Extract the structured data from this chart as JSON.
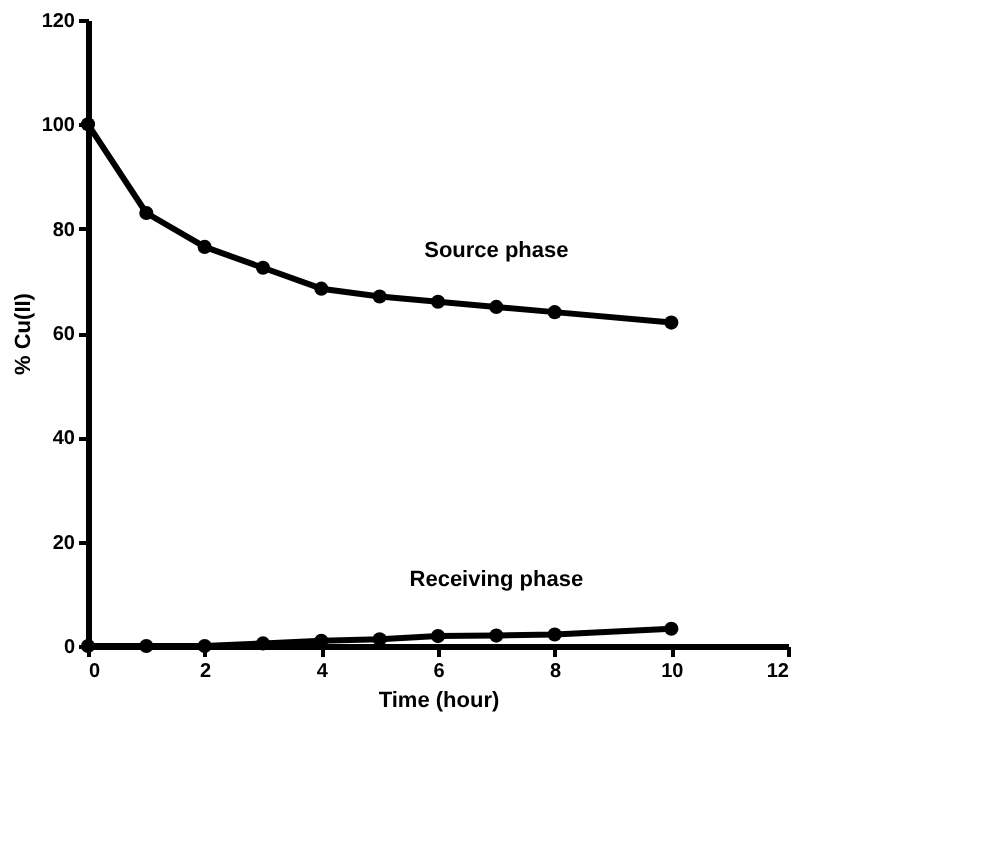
{
  "chart_data": {
    "type": "line",
    "xlabel": "Time  (hour)",
    "ylabel": "% Cu(II)",
    "xlim": [
      0,
      12
    ],
    "ylim": [
      0,
      120
    ],
    "xticks": [
      0,
      2,
      4,
      6,
      8,
      10,
      12
    ],
    "yticks": [
      0,
      20,
      40,
      60,
      80,
      100,
      120
    ],
    "x": [
      0,
      1,
      2,
      3,
      4,
      5,
      6,
      7,
      8,
      10
    ],
    "series": [
      {
        "name": "Source phase",
        "color": "#000000",
        "values": [
          100,
          83,
          76.5,
          72.5,
          68.5,
          67,
          66,
          65,
          64,
          62
        ]
      },
      {
        "name": "Receiving phase",
        "color": "#000000",
        "values": [
          0,
          0,
          0,
          0.5,
          1,
          1.3,
          1.9,
          2,
          2.2,
          3.3
        ]
      }
    ],
    "marker": "circle",
    "line_style": "solid",
    "grid": false
  }
}
